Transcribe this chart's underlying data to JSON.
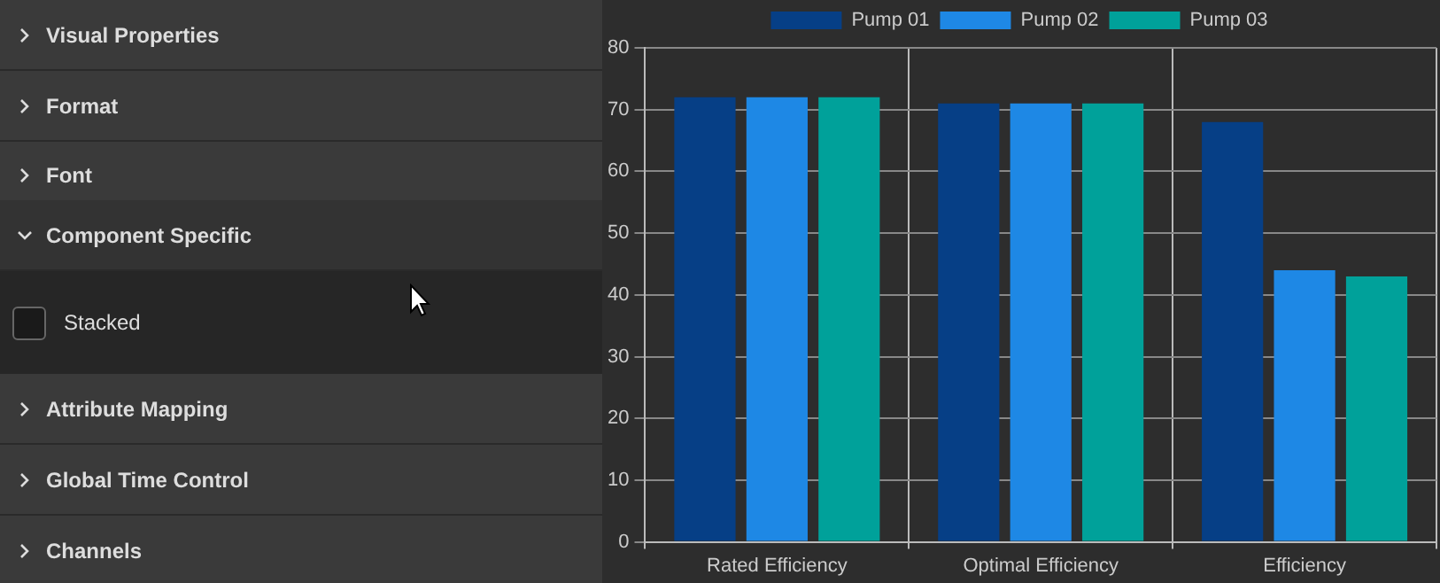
{
  "chart_data": {
    "type": "bar",
    "categories": [
      "Rated Efficiency",
      "Optimal Efficiency",
      "Efficiency"
    ],
    "series": [
      {
        "name": "Pump 01",
        "color": "#063f86",
        "values": [
          72,
          71,
          68
        ]
      },
      {
        "name": "Pump 02",
        "color": "#1e88e5",
        "values": [
          72,
          71,
          44
        ]
      },
      {
        "name": "Pump 03",
        "color": "#00a19a",
        "values": [
          72,
          71,
          43
        ]
      }
    ],
    "ylim": [
      0,
      80
    ],
    "yticks": [
      0,
      10,
      20,
      30,
      40,
      50,
      60,
      70,
      80
    ],
    "grid": true,
    "legend": "top",
    "annotations": [
      "Visual Properties",
      "Format",
      "Font",
      "Component Specific",
      "Stacked",
      "Attribute Mapping",
      "Global Time Control",
      "Channels"
    ]
  }
}
